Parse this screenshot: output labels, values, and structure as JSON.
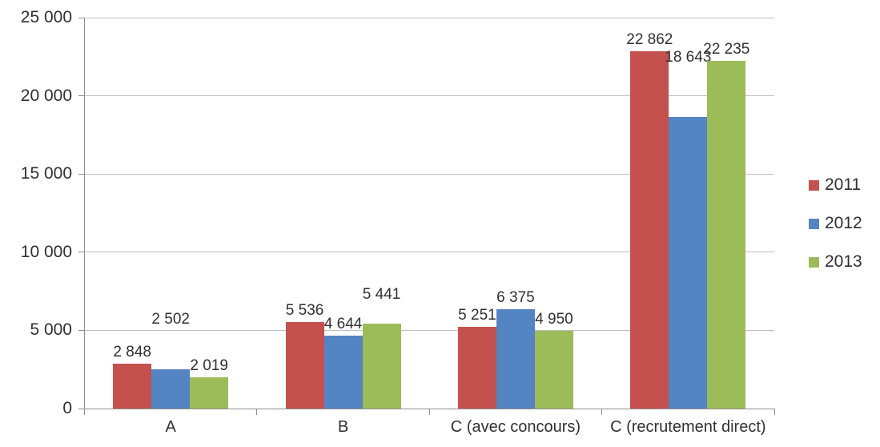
{
  "chart_data": {
    "type": "bar",
    "title": "",
    "xlabel": "",
    "ylabel": "",
    "categories": [
      "A",
      "B",
      "C (avec concours)",
      "C (recrutement direct)"
    ],
    "series": [
      {
        "name": "2011",
        "color": "#C4514D",
        "values": [
          2848,
          5536,
          5251,
          22862
        ]
      },
      {
        "name": "2012",
        "color": "#5484C1",
        "values": [
          2502,
          4644,
          6375,
          18643
        ]
      },
      {
        "name": "2013",
        "color": "#9CBB59",
        "values": [
          2019,
          5441,
          4950,
          22235
        ]
      }
    ],
    "value_labels": [
      "2 848",
      "2 502",
      "2 019",
      "5 536",
      "4 644",
      "5 441",
      "5 251",
      "6 375",
      "4 950",
      "22 862",
      "18 643",
      "22 235"
    ],
    "ylim": [
      0,
      25000
    ],
    "yticks": [
      0,
      5000,
      10000,
      15000,
      20000,
      25000
    ],
    "ytick_labels": [
      "0",
      "5 000",
      "10 000",
      "15 000",
      "20 000",
      "25 000"
    ],
    "grid": true,
    "legend_position": "right",
    "number_format": "space-thousands"
  },
  "colors": {
    "background": "#FFFFFF",
    "gridline": "#BFBFBF",
    "axis": "#8E8E8E",
    "text": "#303030"
  }
}
